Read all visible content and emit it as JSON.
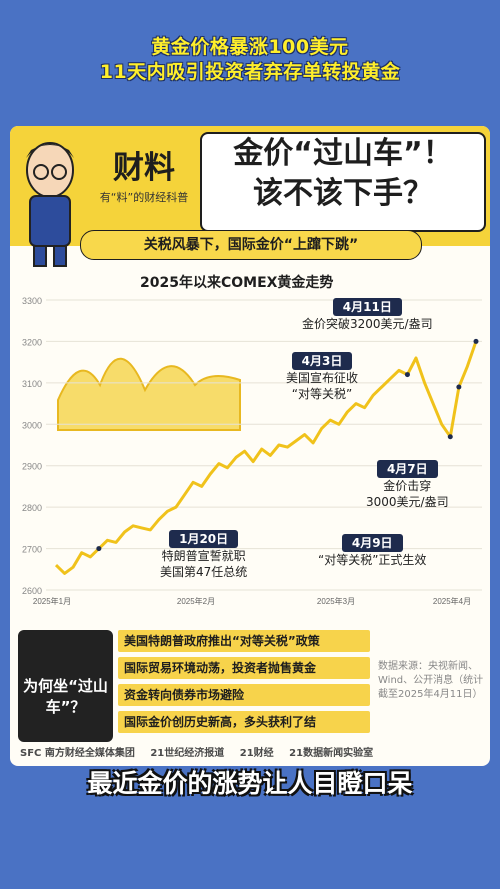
{
  "header": {
    "line1": "黄金价格暴涨100美元",
    "line2": "11天内吸引投资者弃存单转投黄金"
  },
  "brand": {
    "name": "财料",
    "slogan": "有“料”的财经科普"
  },
  "headline": {
    "line1": "金价“过山车”！",
    "line2": "该不该下手？"
  },
  "tagline": "关税风暴下，国际金价“上蹿下跳”",
  "chart_data": {
    "type": "line",
    "title": "2025年以来COMEX黄金走势",
    "xlabel": "",
    "ylabel": "",
    "ylim": [
      2600,
      3300
    ],
    "yticks": [
      2600,
      2700,
      2800,
      2900,
      3000,
      3100,
      3200,
      3300
    ],
    "xticks": [
      "2025年1月",
      "2025年2月",
      "2025年3月",
      "2025年4月"
    ],
    "series": [
      {
        "values": [
          2660,
          2640,
          2655,
          2690,
          2680,
          2700,
          2720,
          2715,
          2740,
          2755,
          2750,
          2745,
          2770,
          2790,
          2800,
          2830,
          2860,
          2850,
          2880,
          2905,
          2895,
          2920,
          2935,
          2910,
          2940,
          2925,
          2950,
          2945,
          2960,
          2975,
          2955,
          2990,
          3010,
          3000,
          3030,
          3050,
          3040,
          3070,
          3090,
          3110,
          3130,
          3120,
          3160,
          3100,
          3050,
          3000,
          2970,
          3090,
          3140,
          3200
        ]
      }
    ],
    "annotations": [
      {
        "date": "1月20日",
        "text": [
          "特朗普宣誓就职",
          "美国第47任总统"
        ]
      },
      {
        "date": "4月3日",
        "text": [
          "美国宣布征收",
          "“对等关税”"
        ]
      },
      {
        "date": "4月11日",
        "text": [
          "金价突破3200美元/盎司"
        ]
      },
      {
        "date": "4月7日",
        "text": [
          "金价击穿",
          "3000美元/盎司"
        ]
      },
      {
        "date": "4月9日",
        "text": [
          "“对等关税”正式生效"
        ]
      }
    ]
  },
  "why": {
    "label": "为何坐“过山车”？"
  },
  "reasons": [
    "美国特朗普政府推出“对等关税”政策",
    "国际贸易环境动荡，投资者抛售黄金",
    "资金转向债券市场避险",
    "国际金价创历史新高，多头获利了结"
  ],
  "source": "数据来源：央视新闻、Wind、公开消息（统计截至2025年4月11日）",
  "sponsors": [
    "SFC 南方财经全媒体集团",
    "21世纪经济报道",
    "21财经",
    "21数据新闻实验室"
  ],
  "subtitle": "最近金价的涨势让人目瞪口呆"
}
